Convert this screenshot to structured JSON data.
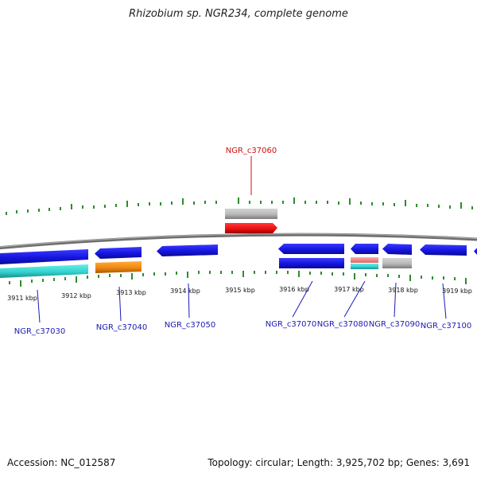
{
  "title": "Rhizobium sp. NGR234, complete genome",
  "footer": {
    "accession": "Accession: NC_012587",
    "summary": "Topology: circular; Length: 3,925,702 bp; Genes: 3,691"
  },
  "colors": {
    "backbone": "#7a7a7a",
    "tick": "#2e8b2e",
    "gene_blue": "#1515e0",
    "gene_red": "#ee1111",
    "gene_gray": "#b8b8b8",
    "gene_cyan": "#33d3cf",
    "gene_orange": "#f08a10",
    "gene_pink": "#ee8888",
    "label_blue": "#1a1ab8",
    "label_red": "#d01010"
  },
  "map": {
    "tick_labels": [
      "3911 kbp",
      "3912 kbp",
      "3913 kbp",
      "3914 kbp",
      "3915 kbp",
      "3916 kbp",
      "3917 kbp",
      "3918 kbp",
      "3919 kbp"
    ],
    "genes": [
      {
        "id": "NGR_c37030",
        "highlight": false
      },
      {
        "id": "NGR_c37040",
        "highlight": false
      },
      {
        "id": "NGR_c37050",
        "highlight": false
      },
      {
        "id": "NGR_c37060",
        "highlight": true
      },
      {
        "id": "NGR_c37070",
        "highlight": false
      },
      {
        "id": "NGR_c37080",
        "highlight": false
      },
      {
        "id": "NGR_c37090",
        "highlight": false
      },
      {
        "id": "NGR_c37100",
        "highlight": false
      }
    ]
  }
}
